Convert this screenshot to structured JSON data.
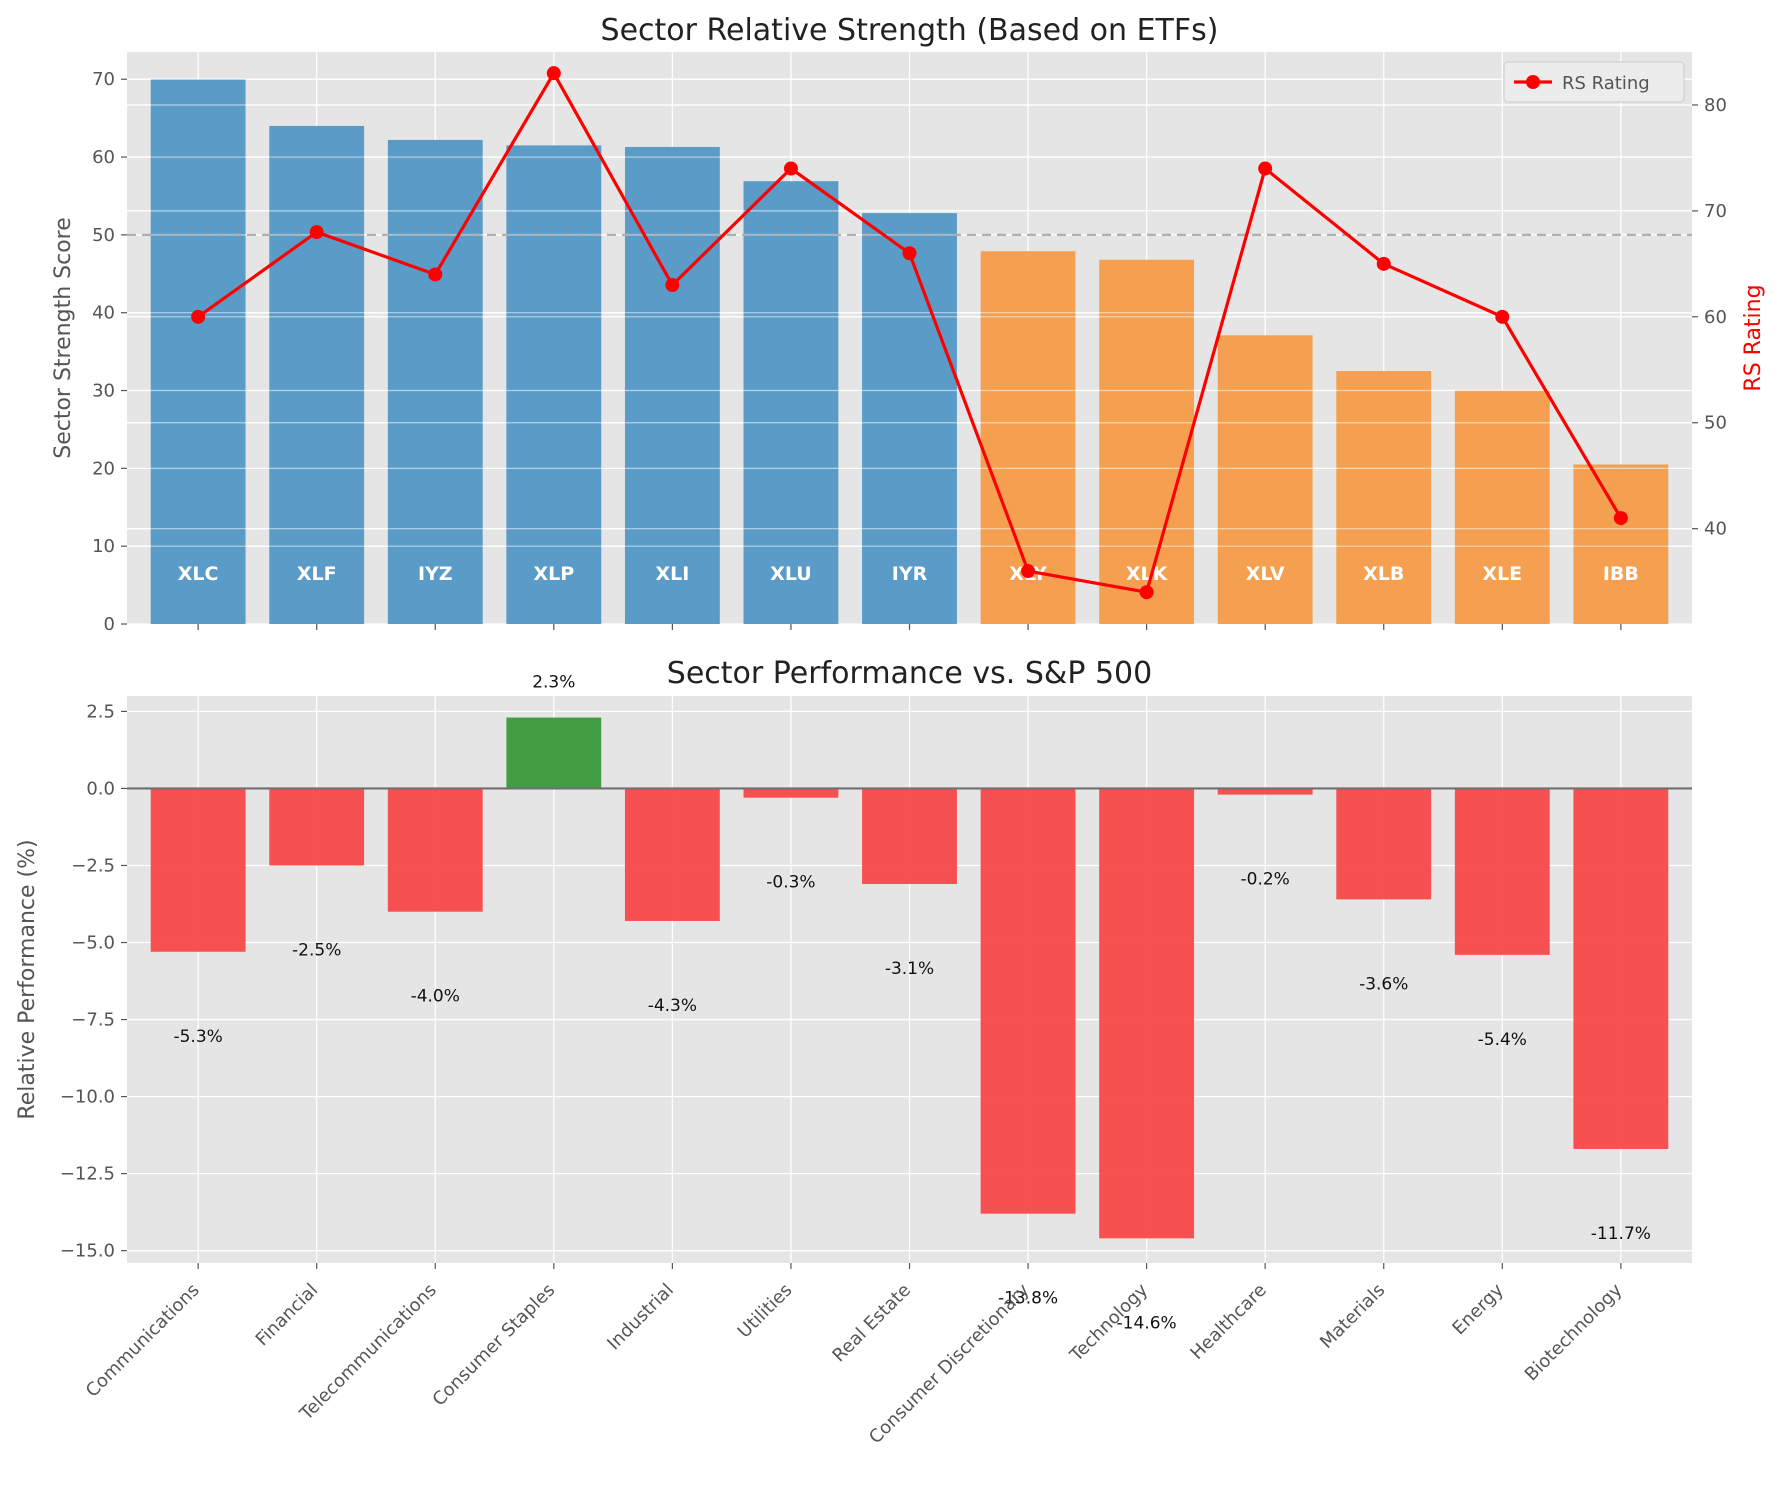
{
  "chart_data": [
    {
      "type": "bar",
      "title": "Sector Relative Strength (Based on ETFs)",
      "ylabel": "Sector Strength Score",
      "y2label": "RS Rating",
      "ylim": [
        0,
        73.5
      ],
      "y2lim": [
        31,
        85
      ],
      "yticks": [
        0,
        10,
        20,
        30,
        40,
        50,
        60,
        70
      ],
      "y2ticks": [
        40,
        50,
        60,
        70,
        80
      ],
      "reference_line": 50,
      "categories": [
        "XLC",
        "XLF",
        "IYZ",
        "XLP",
        "XLI",
        "XLU",
        "IYR",
        "XLY",
        "XLK",
        "XLV",
        "XLB",
        "XLE",
        "IBB"
      ],
      "series": [
        {
          "values": [
            70.0,
            64.0,
            62.2,
            61.5,
            61.3,
            56.9,
            52.8,
            47.9,
            46.8,
            37.1,
            32.5,
            30.0,
            20.5
          ]
        },
        {
          "name": "RS Rating",
          "type": "line",
          "axis": "right",
          "values": [
            60,
            68,
            64,
            83,
            63,
            74,
            66,
            36,
            34,
            74,
            65,
            60,
            41
          ]
        }
      ],
      "bar_colors": [
        "#5a9bc8",
        "#5a9bc8",
        "#5a9bc8",
        "#5a9bc8",
        "#5a9bc8",
        "#5a9bc8",
        "#5a9bc8",
        "#f5a050",
        "#f5a050",
        "#f5a050",
        "#f5a050",
        "#f5a050",
        "#f5a050"
      ],
      "line_color": "#ff0000",
      "legend": {
        "entries": [
          "RS Rating"
        ],
        "placement": "top-right"
      },
      "grid": true
    },
    {
      "type": "bar",
      "title": "Sector Performance vs. S&P 500",
      "ylabel": "Relative Performance (%)",
      "ylim": [
        -15.4,
        3.0
      ],
      "yticks": [
        2.5,
        0.0,
        -2.5,
        -5.0,
        -7.5,
        -10.0,
        -12.5,
        -15.0
      ],
      "ytick_labels": [
        "2.5",
        "0.0",
        "−2.5",
        "−5.0",
        "−7.5",
        "−10.0",
        "−12.5",
        "−15.0"
      ],
      "categories": [
        "Communications",
        "Financial",
        "Telecommunications",
        "Consumer Staples",
        "Industrial",
        "Utilities",
        "Real Estate",
        "Consumer Discretionary",
        "Technology",
        "Healthcare",
        "Materials",
        "Energy",
        "Biotechnology"
      ],
      "values": [
        -5.3,
        -2.5,
        -4.0,
        2.3,
        -4.3,
        -0.3,
        -3.1,
        -13.8,
        -14.6,
        -0.2,
        -3.6,
        -5.4,
        -11.7
      ],
      "value_labels": [
        "-5.3%",
        "-2.5%",
        "-4.0%",
        "2.3%",
        "-4.3%",
        "-0.3%",
        "-3.1%",
        "-13.8%",
        "-14.6%",
        "-0.2%",
        "-3.6%",
        "-5.4%",
        "-11.7%"
      ],
      "positive_color": "#3a9a3a",
      "negative_color": "#f84848",
      "grid": true
    }
  ]
}
